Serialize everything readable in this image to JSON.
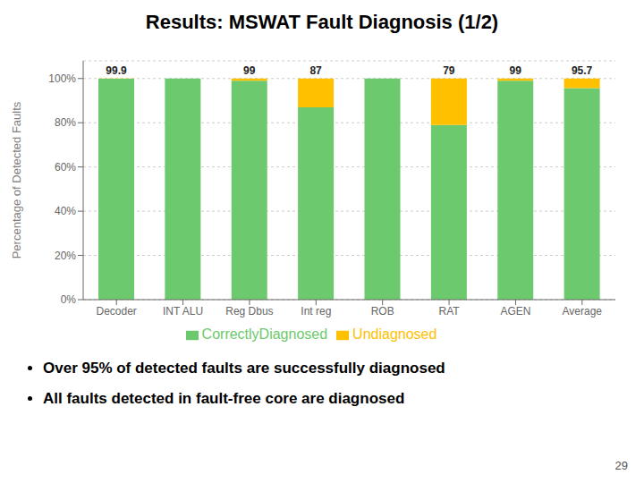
{
  "chart_data": {
    "type": "bar",
    "title": "Results: MSWAT Fault Diagnosis (1/2)",
    "categories": [
      "Decoder",
      "INT ALU",
      "Reg Dbus",
      "Int reg",
      "ROB",
      "RAT",
      "AGEN",
      "Average"
    ],
    "series": [
      {
        "name": "CorrectlyDiagnosed",
        "color": "#6DC96D",
        "values": [
          99.9,
          100,
          99,
          87,
          100,
          79,
          99,
          95.7
        ],
        "data_labels": true
      },
      {
        "name": "Undiagnosed",
        "color": "#FFC000",
        "values": [
          0.1,
          0,
          1,
          13,
          0,
          21,
          1,
          4.3
        ]
      }
    ],
    "stacked": true,
    "ylabel": "Percentage of Detected Faults",
    "ylim": [
      0,
      108
    ],
    "yticks": [
      {
        "value": 0,
        "label": "0%"
      },
      {
        "value": 20,
        "label": "20%"
      },
      {
        "value": 40,
        "label": "40%"
      },
      {
        "value": 60,
        "label": "60%"
      },
      {
        "value": 80,
        "label": "80%"
      },
      {
        "value": 100,
        "label": "100%"
      }
    ],
    "grid": true,
    "legend": "bottom",
    "annotations": [
      "Over 95% of detected faults are successfully diagnosed",
      "All faults detected in fault-free core are diagnosed",
      "29"
    ]
  }
}
